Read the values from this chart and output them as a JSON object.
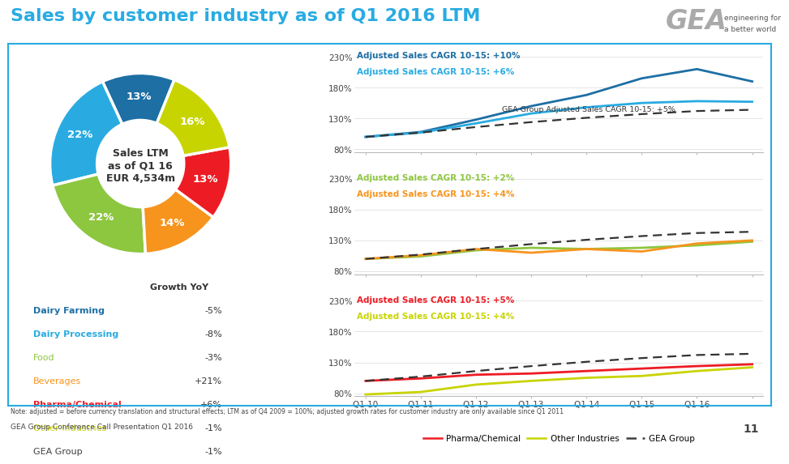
{
  "title": "Sales by customer industry as of Q1 2016 LTM",
  "title_color": "#29ABE2",
  "background_color": "#ffffff",
  "pie": {
    "sizes": [
      13,
      22,
      22,
      14,
      13,
      16
    ],
    "colors": [
      "#1D6FA4",
      "#29ABE2",
      "#8DC63F",
      "#F7941D",
      "#ED1C24",
      "#C8D400"
    ],
    "labels": [
      "13%",
      "22%",
      "22%",
      "14%",
      "13%",
      "16%"
    ],
    "center_text": [
      "Sales LTM",
      "as of Q1 16",
      "EUR 4,534m"
    ],
    "startangle": 68
  },
  "legend_items": [
    {
      "label": "Dairy Farming",
      "color": "#1D6FA4",
      "growth": "-5%",
      "bold": true
    },
    {
      "label": "Dairy Processing",
      "color": "#29ABE2",
      "growth": "-8%",
      "bold": true
    },
    {
      "label": "Food",
      "color": "#8DC63F",
      "growth": "-3%",
      "bold": false
    },
    {
      "label": "Beverages",
      "color": "#F7941D",
      "growth": "+21%",
      "bold": false
    },
    {
      "label": "Pharma/Chemical",
      "color": "#ED1C24",
      "growth": "+6%",
      "bold": true
    },
    {
      "label": "Other Industries",
      "color": "#C8D400",
      "growth": "-1%",
      "bold": false
    },
    {
      "label": "GEA Group",
      "color": "#404040",
      "growth": "-1%",
      "bold": false
    }
  ],
  "x_labels": [
    "Q1 10",
    "Q1 11",
    "Q1 12",
    "Q1 13",
    "Q1 14",
    "Q1 15",
    "Q1 16"
  ],
  "chart1": {
    "cagr1": "Adjusted Sales CAGR 10-15: +10%",
    "cagr2": "Adjusted Sales CAGR 10-15: +6%",
    "cagr1_color": "#1D6FA4",
    "cagr2_color": "#29ABE2",
    "annotation": "GEA Group Adjusted Sales CAGR 10-15: +5%",
    "dairy_farming": [
      100,
      108,
      128,
      150,
      168,
      195,
      210,
      190
    ],
    "dairy_processing": [
      100,
      107,
      122,
      138,
      148,
      155,
      158,
      157
    ],
    "gea_group": [
      100,
      107,
      116,
      124,
      131,
      137,
      142,
      144
    ],
    "legend": [
      [
        "Dairy Farming",
        "#1D6FA4",
        false
      ],
      [
        "Dairy Processing",
        "#29ABE2",
        false
      ],
      [
        "GEA Group",
        "#404040",
        true
      ]
    ]
  },
  "chart2": {
    "cagr1": "Adjusted Sales CAGR 10-15: +2%",
    "cagr2": "Adjusted Sales CAGR 10-15: +4%",
    "cagr1_color": "#8DC63F",
    "cagr2_color": "#F7941D",
    "food": [
      100,
      104,
      114,
      118,
      116,
      118,
      122,
      128
    ],
    "beverages": [
      100,
      106,
      116,
      110,
      116,
      112,
      125,
      130
    ],
    "gea_group": [
      100,
      107,
      116,
      124,
      131,
      137,
      142,
      144
    ],
    "legend": [
      [
        "Food",
        "#8DC63F",
        false
      ],
      [
        "Beverages",
        "#F7941D",
        false
      ],
      [
        "GEA Group",
        "#404040",
        true
      ]
    ]
  },
  "chart3": {
    "cagr1": "Adjusted Sales CAGR 10-15: +5%",
    "cagr2": "Adjusted Sales CAGR 10-15: +4%",
    "cagr1_color": "#ED1C24",
    "cagr2_color": "#C8D400",
    "pharma": [
      100,
      104,
      110,
      112,
      116,
      120,
      124,
      127
    ],
    "other": [
      78,
      82,
      94,
      100,
      105,
      108,
      116,
      122
    ],
    "gea_group": [
      100,
      107,
      116,
      124,
      131,
      137,
      142,
      144
    ],
    "legend": [
      [
        "Pharma/Chemical",
        "#ED1C24",
        false
      ],
      [
        "Other Industries",
        "#C8D400",
        false
      ],
      [
        "GEA Group",
        "#404040",
        true
      ]
    ]
  },
  "note": "Note: adjusted = before currency translation and structural effects; LTM as of Q4 2009 = 100%; adjusted growth rates for customer industry are only available since Q1 2011",
  "footer": "GEA Group Conference Call Presentation Q1 2016",
  "page_num": "11",
  "border_color": "#29ABE2"
}
